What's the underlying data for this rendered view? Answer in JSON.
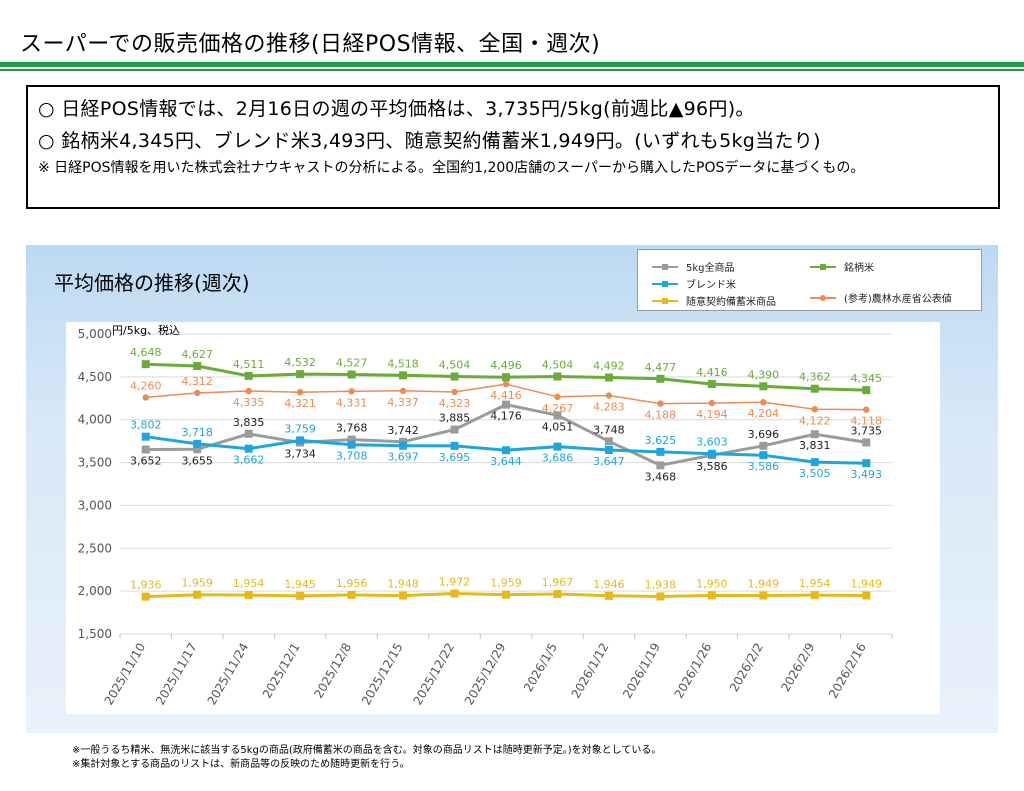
{
  "header": {
    "title": "スーパーでの販売価格の推移(日経POS情報、全国・週次)"
  },
  "summary": {
    "line1": "○ 日経POS情報では、2月16日の週の平均価格は、3,735円/5kg(前週比▲96円)。",
    "line2": "○ 銘柄米4,345円、ブレンド米3,493円、随意契約備蓄米1,949円。(いずれも5kg当たり)",
    "note": "※ 日経POS情報を用いた株式会社ナウキャストの分析による。全国約1,200店舗のスーパーから購入したPOSデータに基づくもの。"
  },
  "footnotes": [
    "※一般うるち精米、無洗米に該当する5kgの商品(政府備蓄米の商品を含む。対象の商品リストは随時更新予定。)を対象としている。",
    "※集計対象とする商品のリストは、新商品等の反映のため随時更新を行う。"
  ],
  "colors": {
    "all": "#9b9b9b",
    "brand": "#6aab3a",
    "blend": "#1fa5dd",
    "stock": "#e6b919",
    "maff": "#ec8b53",
    "rule": "#1e9e49",
    "grid": "#d9d9d9"
  },
  "chart_data": {
    "type": "line",
    "title": "平均価格の推移(週次)",
    "ylabel": "円/5kg、税込",
    "ylim": [
      1500,
      5000
    ],
    "yticks": [
      1500,
      2000,
      2500,
      3000,
      3500,
      4000,
      4500,
      5000
    ],
    "grid": true,
    "legend_position": "top-right",
    "x": [
      "2025/11/10",
      "2025/11/17",
      "2025/11/24",
      "2025/12/1",
      "2025/12/8",
      "2025/12/15",
      "2025/12/22",
      "2025/12/29",
      "2026/1/5",
      "2026/1/12",
      "2026/1/19",
      "2026/1/26",
      "2026/2/2",
      "2026/2/9",
      "2026/2/16"
    ],
    "series": [
      {
        "key": "all",
        "name": "5kg全商品",
        "marker": "square",
        "color": "#9b9b9b",
        "values": [
          3652,
          3655,
          3835,
          3734,
          3768,
          3742,
          3885,
          4176,
          4051,
          3748,
          3468,
          3586,
          3696,
          3831,
          3735
        ],
        "labelColor": "#222222",
        "labelPos": [
          "below",
          "below",
          "above",
          "below",
          "above",
          "above",
          "above",
          "below",
          "below",
          "above",
          "below",
          "below",
          "above",
          "below",
          "above"
        ]
      },
      {
        "key": "brand",
        "name": "銘柄米",
        "marker": "square",
        "color": "#6aab3a",
        "values": [
          4648,
          4627,
          4511,
          4532,
          4527,
          4518,
          4504,
          4496,
          4504,
          4492,
          4477,
          4416,
          4390,
          4362,
          4345
        ],
        "labelColor": "#6aab3a",
        "labelPos": [
          "above",
          "above",
          "above",
          "above",
          "above",
          "above",
          "above",
          "above",
          "above",
          "above",
          "above",
          "above",
          "above",
          "above",
          "above"
        ]
      },
      {
        "key": "blend",
        "name": "ブレンド米",
        "marker": "square",
        "color": "#1fa5dd",
        "values": [
          3802,
          3718,
          3662,
          3759,
          3708,
          3697,
          3695,
          3644,
          3686,
          3647,
          3625,
          3603,
          3586,
          3505,
          3493
        ],
        "labelColor": "#1fa5dd",
        "labelPos": [
          "above",
          "above",
          "below",
          "above",
          "below",
          "below",
          "below",
          "below",
          "below",
          "below",
          "above",
          "above",
          "below",
          "below",
          "below"
        ]
      },
      {
        "key": "stock",
        "name": "随意契約備蓄米商品",
        "marker": "square",
        "color": "#e6b919",
        "values": [
          1936,
          1959,
          1954,
          1945,
          1956,
          1948,
          1972,
          1959,
          1967,
          1946,
          1938,
          1950,
          1949,
          1954,
          1949
        ],
        "labelColor": "#e6b919",
        "labelPos": [
          "above",
          "above",
          "above",
          "above",
          "above",
          "above",
          "above",
          "above",
          "above",
          "above",
          "above",
          "above",
          "above",
          "above",
          "above"
        ]
      },
      {
        "key": "maff",
        "name": "(参考)農林水産省公表値",
        "marker": "circle",
        "color": "#ec8b53",
        "values": [
          4260,
          4312,
          4335,
          4321,
          4331,
          4337,
          4323,
          4416,
          4267,
          4283,
          4188,
          4194,
          4204,
          4122,
          4118
        ],
        "labelColor": "#ec8b53",
        "labelPos": [
          "above",
          "above",
          "below",
          "below",
          "below",
          "below",
          "below",
          "below",
          "below",
          "below",
          "below",
          "below",
          "below",
          "below",
          "below"
        ]
      }
    ]
  }
}
